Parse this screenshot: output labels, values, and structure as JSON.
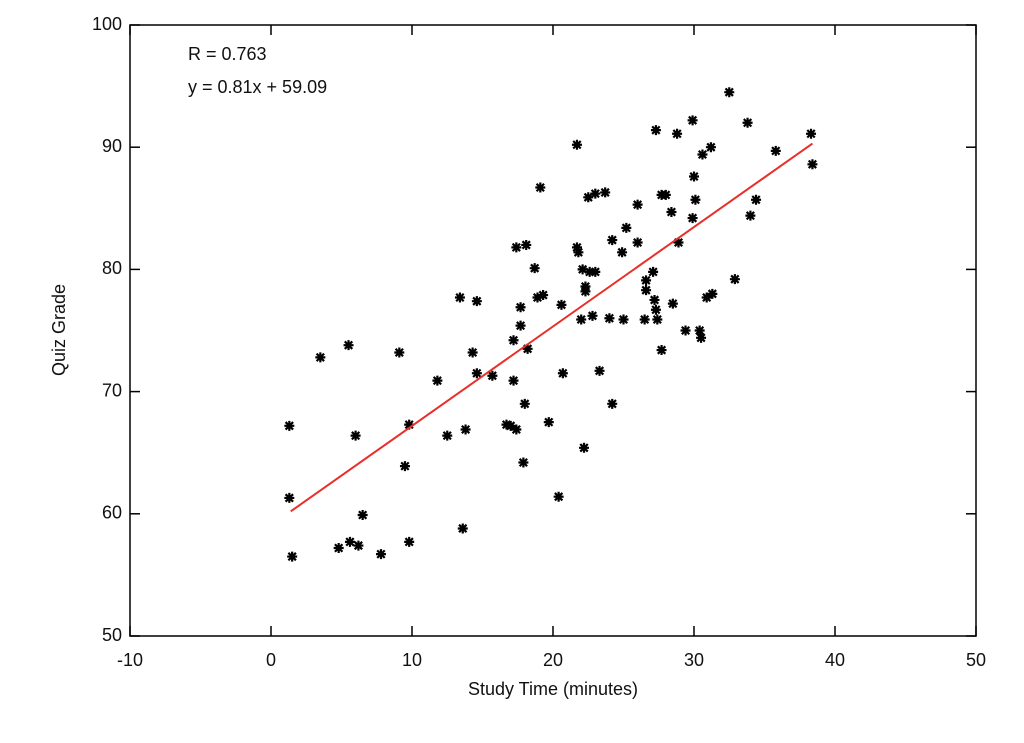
{
  "chart_data": {
    "type": "scatter",
    "xlabel": "Study Time (minutes)",
    "ylabel": "Quiz Grade",
    "annotations": [
      "R = 0.763",
      "y = 0.81x + 59.09"
    ],
    "xlim": [
      -10,
      50
    ],
    "xticks": [
      -10,
      0,
      10,
      20,
      30,
      40,
      50
    ],
    "ylim": [
      50,
      100
    ],
    "yticks": [
      50,
      60,
      70,
      80,
      90,
      100
    ],
    "mirror_ticks": true,
    "series": [
      {
        "type": "scatter",
        "marker": "asterisk",
        "color": "#000000",
        "x": [
          1.3,
          1.3,
          1.5,
          3.5,
          5.5,
          6.0,
          4.8,
          5.6,
          6.2,
          6.5,
          7.8,
          9.1,
          9.5,
          9.8,
          9.8,
          11.8,
          12.5,
          13.4,
          13.6,
          13.8,
          14.3,
          14.6,
          14.6,
          15.7,
          16.7,
          17.0,
          17.2,
          17.2,
          17.4,
          17.4,
          17.7,
          17.7,
          18.0,
          17.9,
          18.1,
          18.2,
          18.7,
          18.9,
          19.1,
          19.3,
          19.7,
          20.4,
          20.7,
          20.6,
          21.7,
          21.7,
          21.8,
          22.0,
          22.1,
          22.3,
          22.3,
          22.2,
          22.5,
          22.6,
          22.8,
          23.0,
          23.0,
          23.3,
          23.7,
          24.0,
          24.2,
          24.2,
          24.9,
          25.0,
          25.2,
          26.0,
          26.0,
          26.5,
          26.6,
          26.6,
          27.1,
          27.2,
          27.3,
          27.3,
          27.4,
          27.7,
          27.7,
          28.0,
          28.4,
          28.5,
          28.8,
          28.9,
          29.4,
          29.9,
          30.0,
          30.1,
          29.9,
          30.4,
          30.5,
          30.6,
          30.9,
          31.2,
          31.3,
          32.5,
          32.9,
          33.8,
          34.0,
          34.4,
          35.8,
          38.3,
          38.4
        ],
        "values": [
          67.2,
          61.3,
          56.5,
          72.8,
          73.8,
          66.4,
          57.2,
          57.7,
          57.4,
          59.9,
          56.7,
          73.2,
          63.9,
          67.3,
          57.7,
          70.9,
          66.4,
          77.7,
          58.8,
          66.9,
          73.2,
          71.5,
          77.4,
          71.3,
          67.3,
          67.2,
          70.9,
          74.2,
          66.9,
          81.8,
          75.4,
          76.9,
          69.0,
          64.2,
          82.0,
          73.5,
          80.1,
          77.7,
          86.7,
          77.9,
          67.5,
          61.4,
          71.5,
          77.1,
          90.2,
          81.8,
          81.4,
          75.9,
          80.0,
          78.6,
          78.2,
          65.4,
          85.9,
          79.8,
          76.2,
          86.2,
          79.8,
          71.7,
          86.3,
          76.0,
          82.4,
          69.0,
          81.4,
          75.9,
          83.4,
          85.3,
          82.2,
          75.9,
          79.1,
          78.3,
          79.8,
          77.5,
          91.4,
          76.7,
          75.9,
          73.4,
          86.1,
          86.1,
          84.7,
          77.2,
          91.1,
          82.2,
          75.0,
          92.2,
          87.6,
          85.7,
          84.2,
          75.0,
          74.4,
          89.4,
          77.7,
          90.0,
          78.0,
          94.5,
          79.2,
          92.0,
          84.4,
          85.7,
          89.7,
          91.1,
          88.6
        ]
      },
      {
        "type": "line",
        "color": "#e8302a",
        "x": [
          1.4,
          38.4
        ],
        "values": [
          60.2,
          90.3
        ]
      }
    ]
  }
}
